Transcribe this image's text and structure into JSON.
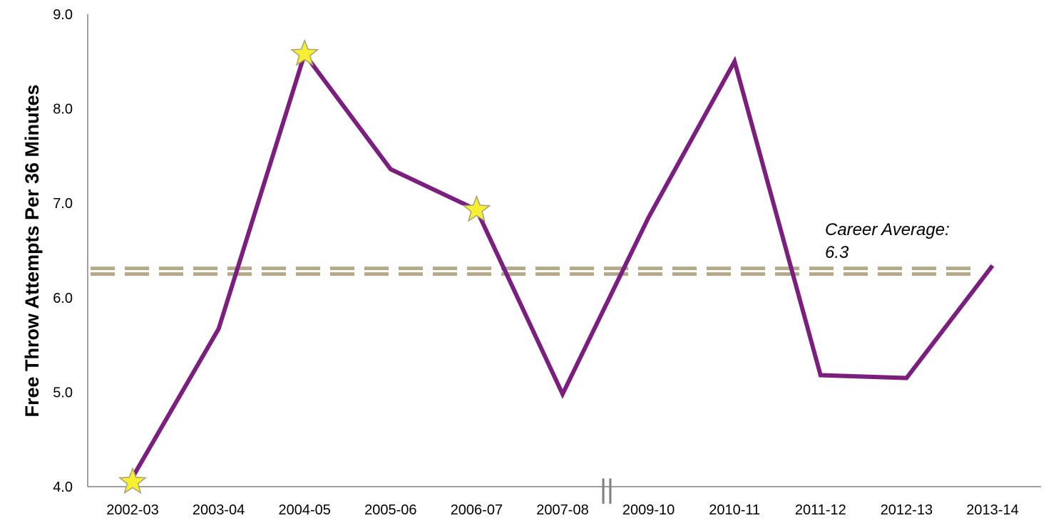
{
  "chart_data": {
    "type": "line",
    "ylabel": "Free Throw Attempts Per 36 Minutes",
    "xlabel": "",
    "ylim": [
      4.0,
      9.0
    ],
    "yticks": [
      "4.0",
      "5.0",
      "6.0",
      "7.0",
      "8.0",
      "9.0"
    ],
    "categories": [
      "2002-03",
      "2003-04",
      "2004-05",
      "2005-06",
      "2006-07",
      "2007-08",
      "2009-10",
      "2010-11",
      "2011-12",
      "2012-13",
      "2013-14"
    ],
    "axis_break_marker": "||",
    "series": [
      {
        "values": [
          4.1,
          5.67,
          8.58,
          7.36,
          6.93,
          4.98,
          6.85,
          8.5,
          5.18,
          5.15,
          6.34
        ],
        "color": "#7b1f7e"
      }
    ],
    "star_markers": [
      {
        "category": "2002-03",
        "value": 4.05
      },
      {
        "category": "2004-05",
        "value": 8.58
      },
      {
        "category": "2006-07",
        "value": 6.93
      }
    ],
    "star_color": "#f7f032",
    "reference_line": {
      "value": 6.28,
      "label_line1": "Career Average:",
      "label_line2": "6.3",
      "color": "#b3a98a"
    },
    "grid": false,
    "legend": "none"
  }
}
